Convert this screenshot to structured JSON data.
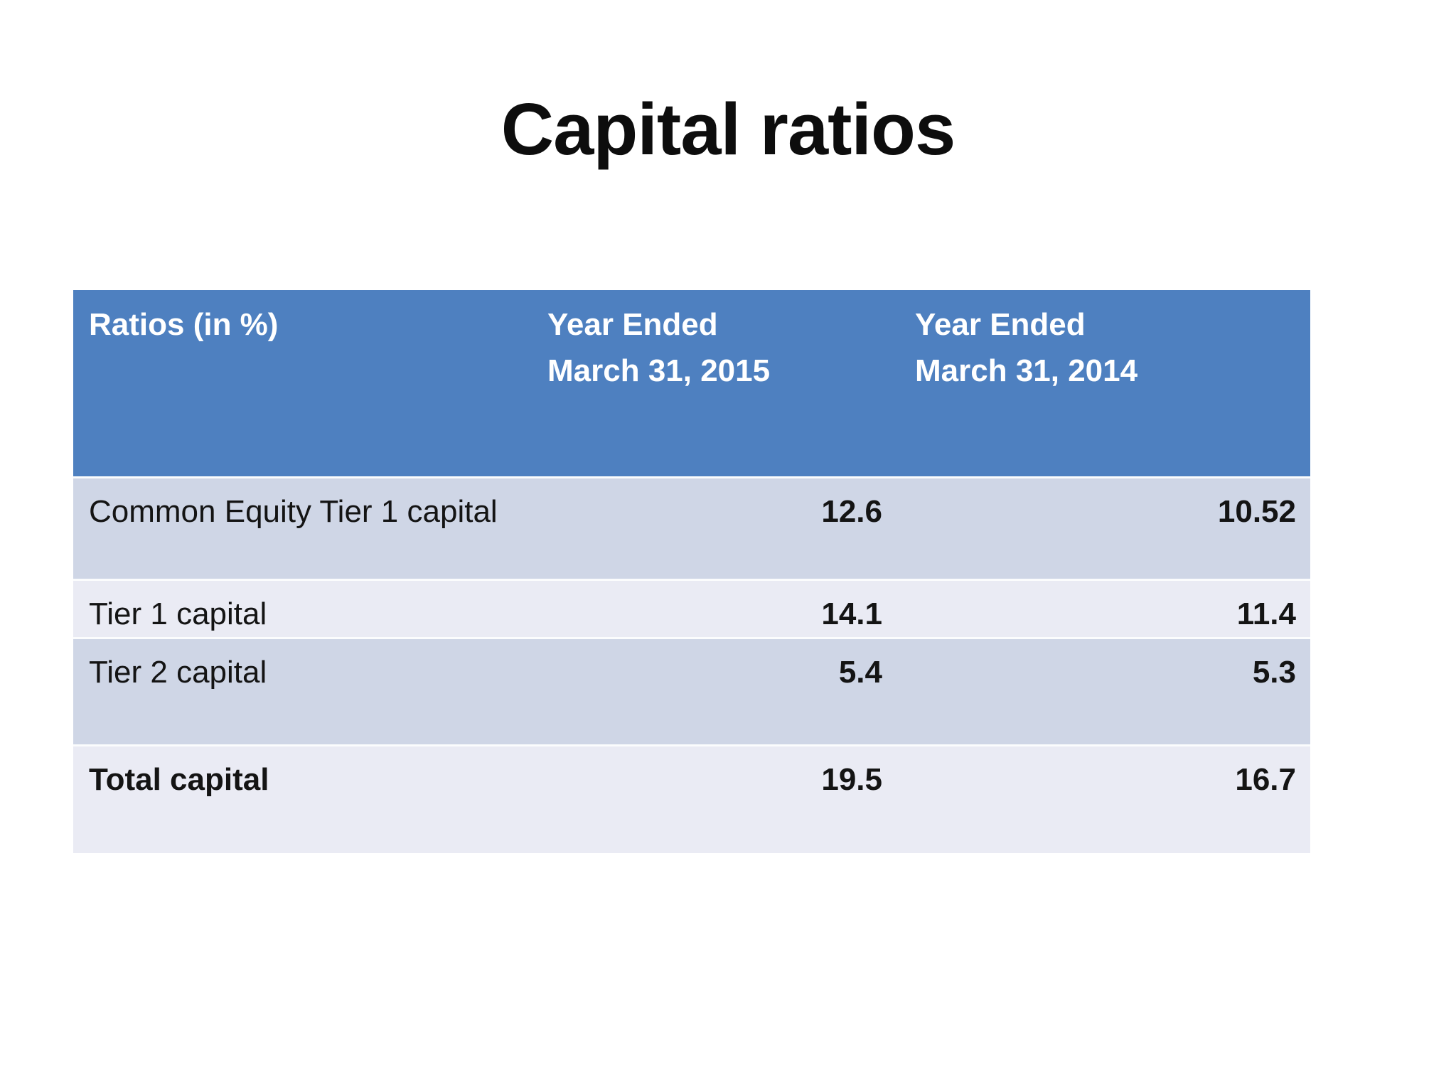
{
  "title": "Capital ratios",
  "table": {
    "headers": {
      "ratios": "Ratios (in %)",
      "year_2015": "Year Ended\nMarch 31, 2015",
      "year_2014": "Year Ended\nMarch 31, 2014"
    },
    "rows": [
      {
        "label": "Common Equity Tier 1 capital",
        "y2015": "12.6",
        "y2014": "10.52"
      },
      {
        "label": "Tier 1 capital",
        "y2015": "14.1",
        "y2014": "11.4"
      },
      {
        "label": "Tier 2 capital",
        "y2015": "5.4",
        "y2014": "5.3"
      },
      {
        "label": "Total capital",
        "y2015": "19.5",
        "y2014": "16.7"
      }
    ]
  },
  "colors": {
    "header_bg": "#4e80c0",
    "header_text": "#ffffff",
    "row_band_dark": "#cfd6e6",
    "row_band_light": "#eaebf4",
    "title_text": "#0d0d0d",
    "body_text": "#141414",
    "page_bg": "#ffffff"
  }
}
